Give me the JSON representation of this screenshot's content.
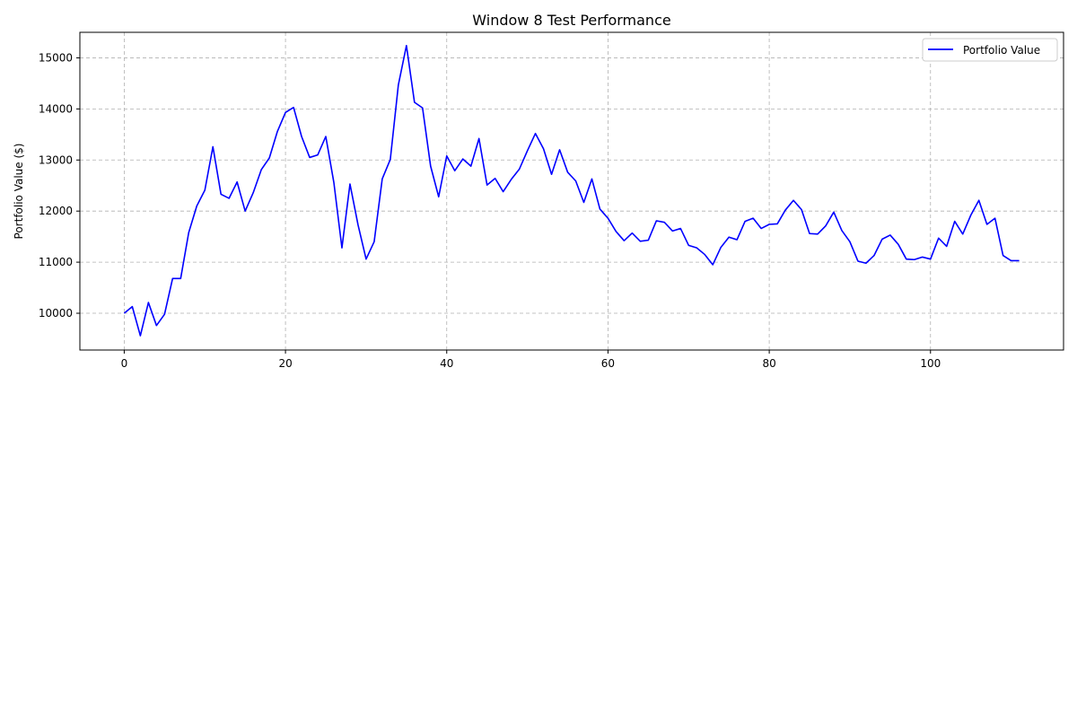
{
  "chart_data": {
    "type": "line",
    "title": "Window 8 Test Performance",
    "xlabel": "",
    "ylabel": "Portfolio Value ($)",
    "xlim": [
      -5.5,
      116.5
    ],
    "ylim": [
      9280,
      15500
    ],
    "xticks": [
      0,
      20,
      40,
      60,
      80,
      100
    ],
    "yticks": [
      10000,
      11000,
      12000,
      13000,
      14000,
      15000
    ],
    "grid": true,
    "legend_position": "top-right",
    "series": [
      {
        "name": "Portfolio Value",
        "color": "#0000ff",
        "x": [
          0,
          1,
          2,
          3,
          4,
          5,
          6,
          7,
          8,
          9,
          10,
          11,
          12,
          13,
          14,
          15,
          16,
          17,
          18,
          19,
          20,
          21,
          22,
          23,
          24,
          25,
          26,
          27,
          28,
          29,
          30,
          31,
          32,
          33,
          34,
          35,
          36,
          37,
          38,
          39,
          40,
          41,
          42,
          43,
          44,
          45,
          46,
          47,
          48,
          49,
          50,
          51,
          52,
          53,
          54,
          55,
          56,
          57,
          58,
          59,
          60,
          61,
          62,
          63,
          64,
          65,
          66,
          67,
          68,
          69,
          70,
          71,
          72,
          73,
          74,
          75,
          76,
          77,
          78,
          79,
          80,
          81,
          82,
          83,
          84,
          85,
          86,
          87,
          88,
          89,
          90,
          91,
          92,
          93,
          94,
          95,
          96,
          97,
          98,
          99,
          100,
          101,
          102,
          103,
          104,
          105,
          106,
          107,
          108,
          109,
          110,
          111
        ],
        "values": [
          10000,
          10130,
          9560,
          10210,
          9760,
          9980,
          10680,
          10680,
          11580,
          12100,
          12410,
          13260,
          12330,
          12250,
          12570,
          12000,
          12360,
          12810,
          13040,
          13560,
          13930,
          14030,
          13460,
          13050,
          13100,
          13460,
          12560,
          11280,
          12530,
          11730,
          11060,
          11400,
          12630,
          13010,
          14470,
          15240,
          14130,
          14020,
          12880,
          12280,
          13080,
          12790,
          13020,
          12880,
          13420,
          12510,
          12640,
          12380,
          12620,
          12820,
          13180,
          13520,
          13220,
          12720,
          13200,
          12760,
          12590,
          12170,
          12630,
          12040,
          11860,
          11600,
          11420,
          11570,
          11410,
          11430,
          11810,
          11780,
          11610,
          11660,
          11330,
          11280,
          11150,
          10950,
          11290,
          11490,
          11440,
          11800,
          11860,
          11660,
          11740,
          11750,
          12020,
          12210,
          12030,
          11560,
          11550,
          11710,
          11980,
          11620,
          11400,
          11020,
          10980,
          11130,
          11450,
          11530,
          11350,
          11060,
          11050,
          11100,
          11060,
          11470,
          11310,
          11800,
          11550,
          11920,
          12210,
          11740,
          11860,
          11130,
          11030,
          11030
        ]
      }
    ]
  }
}
